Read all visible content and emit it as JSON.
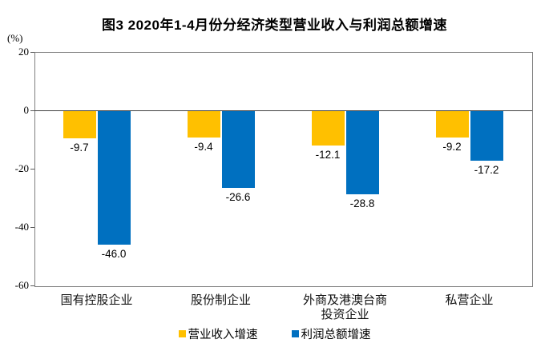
{
  "title": "图3  2020年1-4月份分经济类型营业收入与利润总额增速",
  "unit_label": "(%)",
  "chart_data": {
    "type": "bar",
    "categories": [
      "国有控股企业",
      "股份制企业",
      "外商及港澳台商\n投资企业",
      "私营企业"
    ],
    "series": [
      {
        "name": "营业收入增速",
        "color": "#FFC000",
        "values": [
          -9.7,
          -9.4,
          -12.1,
          -9.2
        ]
      },
      {
        "name": "利润总额增速",
        "color": "#0070C0",
        "values": [
          -46.0,
          -26.6,
          -28.8,
          -17.2
        ]
      }
    ],
    "data_labels": {
      "营业收入增速": [
        "-9.7",
        "-9.4",
        "-12.1",
        "-9.2"
      ],
      "利润总额增速": [
        "-46.0",
        "-26.6",
        "-28.8",
        "-17.2"
      ]
    },
    "ylim": [
      -60,
      20
    ],
    "yticks": [
      20,
      0,
      -20,
      -40,
      -60
    ],
    "grid": false,
    "legend_position": "bottom",
    "axis_color": "#7f7f7f",
    "zero_line_color": "#404040"
  }
}
